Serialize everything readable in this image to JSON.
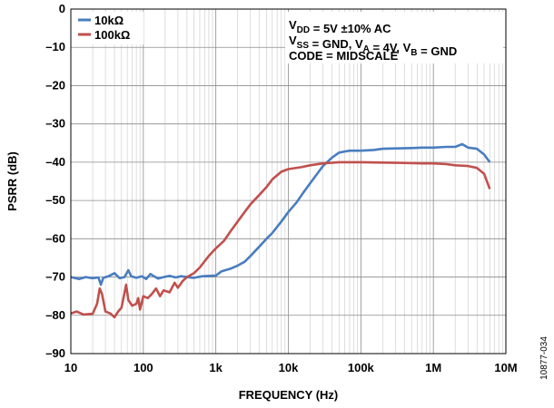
{
  "chart_data": {
    "type": "line",
    "xlabel": "FREQUENCY (Hz)",
    "ylabel": "PSRR (dB)",
    "x_scale": "log",
    "xlim": [
      10,
      10000000
    ],
    "ylim": [
      -90,
      0
    ],
    "grid": true,
    "legend_position": "top-left",
    "x_ticks": [
      "10",
      "100",
      "1k",
      "10k",
      "100k",
      "1M",
      "10M"
    ],
    "y_ticks": [
      "0",
      "–10",
      "–20",
      "–30",
      "–40",
      "–50",
      "–60",
      "–70",
      "–80",
      "–90"
    ],
    "annotations": [
      {
        "main": "V",
        "sub": "DD",
        "rest": " = 5V ±10% AC"
      },
      {
        "parts": [
          [
            "V",
            ""
          ],
          [
            "SS",
            "sub"
          ],
          [
            " = GND, V",
            ""
          ],
          [
            "A",
            "sub"
          ],
          [
            " = 4V, V",
            ""
          ],
          [
            "B",
            "sub"
          ],
          [
            " = GND",
            ""
          ]
        ]
      },
      {
        "parts": [
          [
            "CODE = MIDSCALE",
            ""
          ]
        ]
      }
    ],
    "figure_id": "10877-034",
    "series": [
      {
        "name": "10kΩ",
        "color": "#4a7dbf",
        "points": [
          [
            10,
            -70.0
          ],
          [
            13,
            -70.5
          ],
          [
            16,
            -70.0
          ],
          [
            20,
            -70.3
          ],
          [
            24,
            -70.1
          ],
          [
            26,
            -72.0
          ],
          [
            28,
            -70.2
          ],
          [
            33,
            -69.8
          ],
          [
            40,
            -69.0
          ],
          [
            47,
            -70.3
          ],
          [
            55,
            -70.0
          ],
          [
            62,
            -68.2
          ],
          [
            68,
            -69.8
          ],
          [
            80,
            -70.2
          ],
          [
            95,
            -69.8
          ],
          [
            110,
            -70.5
          ],
          [
            125,
            -69.2
          ],
          [
            140,
            -69.8
          ],
          [
            160,
            -70.4
          ],
          [
            190,
            -70.0
          ],
          [
            230,
            -69.7
          ],
          [
            280,
            -70.1
          ],
          [
            330,
            -69.8
          ],
          [
            400,
            -70.0
          ],
          [
            500,
            -70.2
          ],
          [
            650,
            -69.8
          ],
          [
            800,
            -69.7
          ],
          [
            1000,
            -69.6
          ],
          [
            1200,
            -68.5
          ],
          [
            1600,
            -67.8
          ],
          [
            2000,
            -67.0
          ],
          [
            2500,
            -66.0
          ],
          [
            3000,
            -64.5
          ],
          [
            4000,
            -62.0
          ],
          [
            5000,
            -60.0
          ],
          [
            6000,
            -58.5
          ],
          [
            8000,
            -55.5
          ],
          [
            10000,
            -53.0
          ],
          [
            13000,
            -50.5
          ],
          [
            16000,
            -48.0
          ],
          [
            20000,
            -45.5
          ],
          [
            25000,
            -43.0
          ],
          [
            30000,
            -41.0
          ],
          [
            40000,
            -38.8
          ],
          [
            50000,
            -37.5
          ],
          [
            70000,
            -37.0
          ],
          [
            100000,
            -37.0
          ],
          [
            150000,
            -36.8
          ],
          [
            200000,
            -36.5
          ],
          [
            300000,
            -36.4
          ],
          [
            500000,
            -36.3
          ],
          [
            700000,
            -36.2
          ],
          [
            1000000,
            -36.2
          ],
          [
            1500000,
            -36.0
          ],
          [
            2000000,
            -36.0
          ],
          [
            2500000,
            -35.3
          ],
          [
            3000000,
            -36.2
          ],
          [
            4000000,
            -36.5
          ],
          [
            5000000,
            -38.0
          ],
          [
            6000000,
            -40.0
          ]
        ]
      },
      {
        "name": "100kΩ",
        "color": "#c0504d",
        "points": [
          [
            10,
            -79.5
          ],
          [
            12,
            -79.0
          ],
          [
            15,
            -79.8
          ],
          [
            20,
            -79.6
          ],
          [
            23,
            -77.0
          ],
          [
            25,
            -73.0
          ],
          [
            27,
            -74.5
          ],
          [
            30,
            -79.0
          ],
          [
            35,
            -79.5
          ],
          [
            40,
            -80.5
          ],
          [
            45,
            -79.0
          ],
          [
            50,
            -78.0
          ],
          [
            58,
            -72.0
          ],
          [
            62,
            -76.0
          ],
          [
            70,
            -77.5
          ],
          [
            80,
            -77.0
          ],
          [
            85,
            -75.5
          ],
          [
            90,
            -78.5
          ],
          [
            100,
            -75.0
          ],
          [
            115,
            -75.5
          ],
          [
            130,
            -74.5
          ],
          [
            150,
            -73.0
          ],
          [
            170,
            -75.0
          ],
          [
            190,
            -73.5
          ],
          [
            230,
            -74.0
          ],
          [
            270,
            -71.5
          ],
          [
            300,
            -72.8
          ],
          [
            350,
            -71.0
          ],
          [
            400,
            -70.0
          ],
          [
            500,
            -69.0
          ],
          [
            600,
            -67.5
          ],
          [
            800,
            -64.5
          ],
          [
            1000,
            -62.5
          ],
          [
            1300,
            -60.5
          ],
          [
            1600,
            -58.0
          ],
          [
            2000,
            -55.5
          ],
          [
            2500,
            -53.0
          ],
          [
            3000,
            -51.0
          ],
          [
            4000,
            -48.5
          ],
          [
            5000,
            -46.5
          ],
          [
            6000,
            -44.5
          ],
          [
            8000,
            -42.5
          ],
          [
            10000,
            -41.8
          ],
          [
            15000,
            -41.3
          ],
          [
            20000,
            -40.8
          ],
          [
            30000,
            -40.3
          ],
          [
            50000,
            -40.0
          ],
          [
            70000,
            -40.0
          ],
          [
            100000,
            -40.0
          ],
          [
            200000,
            -40.1
          ],
          [
            400000,
            -40.2
          ],
          [
            700000,
            -40.3
          ],
          [
            1000000,
            -40.3
          ],
          [
            1500000,
            -40.5
          ],
          [
            2000000,
            -40.8
          ],
          [
            3000000,
            -41.0
          ],
          [
            4000000,
            -41.5
          ],
          [
            5000000,
            -43.0
          ],
          [
            6000000,
            -47.0
          ]
        ]
      }
    ]
  }
}
